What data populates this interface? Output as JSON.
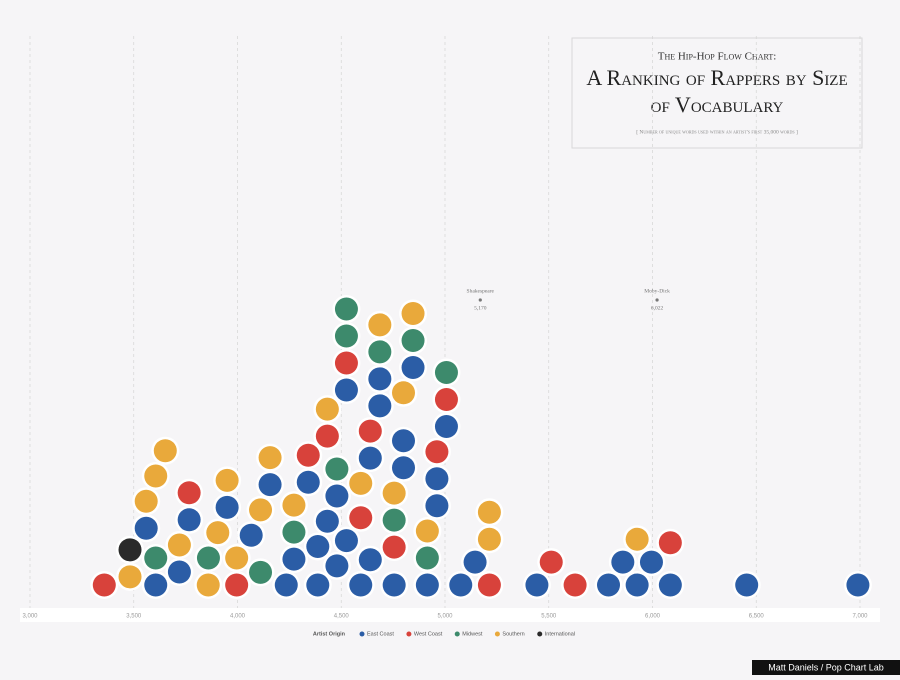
{
  "chart_data": {
    "type": "swarm",
    "title_kicker": "The Hip-Hop Flow Chart:",
    "title": "A Ranking of Rappers by Size of Vocabulary",
    "subtitle": "[ Number of unique words used within an artist's first 35,000 words ]",
    "legend_title": "Artist Origin",
    "credit": "Matt Daniels / Pop Chart Lab",
    "xlim": [
      3000,
      7000
    ],
    "xticks": [
      {
        "value": 3000,
        "label": "3,000"
      },
      {
        "value": 3500,
        "label": "3,500"
      },
      {
        "value": 4000,
        "label": "4,000"
      },
      {
        "value": 4500,
        "label": "4,500"
      },
      {
        "value": 5000,
        "label": "5,000"
      },
      {
        "value": 5500,
        "label": "5,500"
      },
      {
        "value": 6000,
        "label": "6,000"
      },
      {
        "value": 6500,
        "label": "6,500"
      },
      {
        "value": 7000,
        "label": "7,000"
      }
    ],
    "grid": true,
    "annotations": [
      {
        "text": "Shakespeare",
        "value": 5170,
        "value_label": "5,170"
      },
      {
        "text": "Moby-Dick",
        "value": 6022,
        "value_label": "6,022"
      }
    ],
    "series": [
      {
        "name": "East Coast",
        "color": "#2b5da6",
        "values": [
          3560,
          3606,
          3720,
          3767,
          3950,
          4066,
          4157,
          4235,
          4272,
          4341,
          4387,
          4433,
          4479,
          4479,
          4525,
          4525,
          4594,
          4640,
          4640,
          4686,
          4755,
          4800,
          4846,
          4915,
          4961,
          4961,
          5007,
          5076,
          5145,
          5443,
          5788,
          5857,
          5926,
          5995,
          6086,
          6454,
          6990,
          4387,
          4686,
          4800
        ]
      },
      {
        "name": "West Coast",
        "color": "#d8423b",
        "values": [
          3358,
          3767,
          3996,
          4341,
          4433,
          4525,
          4594,
          4640,
          4961,
          5007,
          5214,
          5512,
          5627,
          6086,
          4755
        ]
      },
      {
        "name": "Midwest",
        "color": "#3d8a6c",
        "values": [
          3606,
          3860,
          4111,
          4272,
          4479,
          4525,
          4525,
          4686,
          4755,
          4915,
          5007,
          4846
        ]
      },
      {
        "name": "Southern",
        "color": "#e9a93b",
        "values": [
          3482,
          3560,
          3606,
          3652,
          3720,
          3859,
          3905,
          3950,
          3996,
          4111,
          4157,
          4272,
          4433,
          4594,
          4686,
          4755,
          4800,
          4846,
          4915,
          5214,
          5926,
          5214
        ]
      },
      {
        "name": "International",
        "color": "#2a2a2a",
        "values": [
          3482
        ]
      }
    ]
  }
}
